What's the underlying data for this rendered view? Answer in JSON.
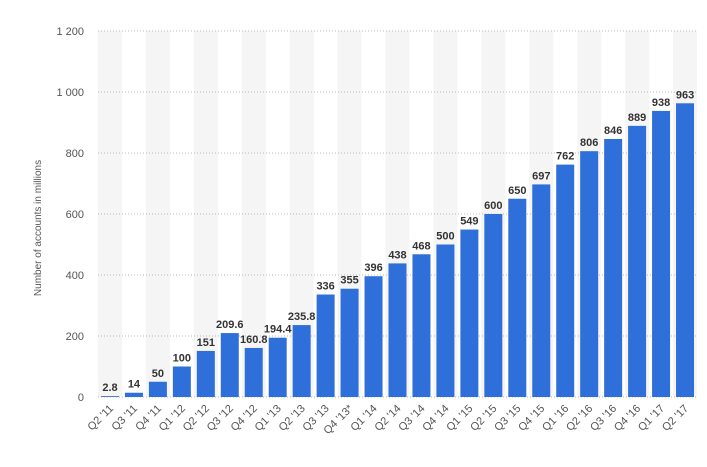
{
  "chart_data": {
    "type": "bar",
    "ylabel": "Number of accounts in millions",
    "ylim": [
      0,
      1200
    ],
    "yticks": [
      0,
      200,
      400,
      600,
      800,
      1000,
      1200
    ],
    "ytick_labels": [
      "0",
      "200",
      "400",
      "600",
      "800",
      "1 000",
      "1 200"
    ],
    "grid": true,
    "bar_color": "#2e6fd9",
    "categories": [
      "Q2 '11",
      "Q3 '11",
      "Q4 '11",
      "Q1 '12",
      "Q2 '12",
      "Q3 '12",
      "Q4 '12",
      "Q1 '13",
      "Q2 '13",
      "Q3 '13",
      "Q4 '13*",
      "Q1 '14",
      "Q2 '14",
      "Q3 '14",
      "Q4 '14",
      "Q1 '15",
      "Q2 '15",
      "Q3 '15",
      "Q4 '15",
      "Q1 '16",
      "Q2 '16",
      "Q3 '16",
      "Q4 '16",
      "Q1 '17",
      "Q2 '17"
    ],
    "values": [
      2.8,
      14,
      50,
      100,
      151,
      209.6,
      160.8,
      194.4,
      235.8,
      336,
      355,
      396,
      438,
      468,
      500,
      549,
      600,
      650,
      697,
      762,
      806,
      846,
      889,
      938,
      963
    ],
    "value_labels": [
      "2.8",
      "14",
      "50",
      "100",
      "151",
      "209.6",
      "160.8",
      "194.4",
      "235.8",
      "336",
      "355",
      "396",
      "438",
      "468",
      "500",
      "549",
      "600",
      "650",
      "697",
      "762",
      "806",
      "846",
      "889",
      "938",
      "963"
    ]
  }
}
